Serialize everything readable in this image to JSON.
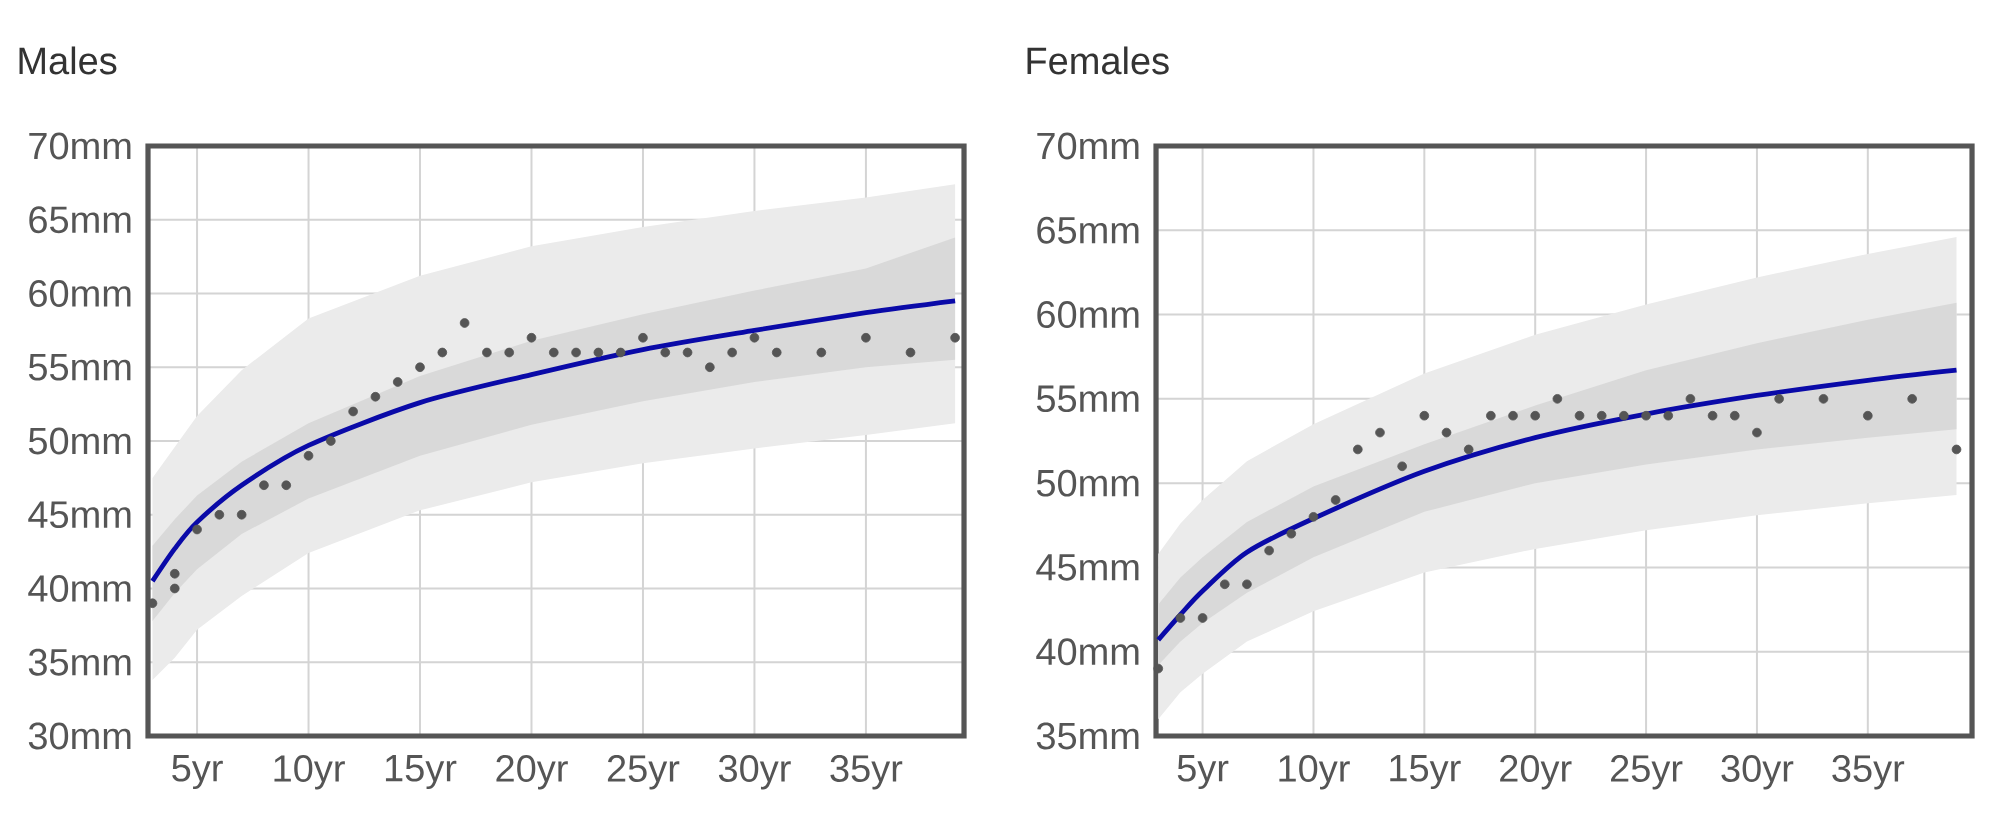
{
  "chart_data": [
    {
      "type": "line",
      "title": "Males",
      "xlim": [
        2.8,
        39.4
      ],
      "ylim": [
        30,
        70
      ],
      "xticks": [
        {
          "value": 5,
          "label": "5yr"
        },
        {
          "value": 10,
          "label": "10yr"
        },
        {
          "value": 15,
          "label": "15yr"
        },
        {
          "value": 20,
          "label": "20yr"
        },
        {
          "value": 25,
          "label": "25yr"
        },
        {
          "value": 30,
          "label": "30yr"
        },
        {
          "value": 35,
          "label": "35yr"
        }
      ],
      "yticks": [
        {
          "value": 30,
          "label": "30mm"
        },
        {
          "value": 35,
          "label": "35mm"
        },
        {
          "value": 40,
          "label": "40mm"
        },
        {
          "value": 45,
          "label": "45mm"
        },
        {
          "value": 50,
          "label": "50mm"
        },
        {
          "value": 55,
          "label": "55mm"
        },
        {
          "value": 60,
          "label": "60mm"
        },
        {
          "value": 65,
          "label": "65mm"
        },
        {
          "value": 70,
          "label": "70mm"
        }
      ],
      "grid": true,
      "series": [
        {
          "color": "#ebebeb",
          "x": [
            3,
            4,
            5,
            7,
            10,
            15,
            20,
            25,
            30,
            35,
            39
          ],
          "values": [
            null,
            null,
            null,
            null,
            null,
            null,
            null,
            null,
            null,
            null,
            null
          ],
          "lower": [
            33.8,
            35.3,
            37.2,
            39.5,
            42.4,
            45.3,
            47.2,
            48.5,
            49.5,
            50.4,
            51.2
          ],
          "upper": [
            47.5,
            49.6,
            51.7,
            54.8,
            58.3,
            61.2,
            63.2,
            64.5,
            65.6,
            66.5,
            67.4
          ]
        },
        {
          "color": "#0a0aa8",
          "x": [
            3,
            4,
            5,
            7,
            10,
            15,
            20,
            25,
            30,
            35,
            39
          ],
          "values": [
            40.5,
            42.7,
            44.5,
            47,
            49.7,
            52.6,
            54.5,
            56.2,
            57.5,
            58.7,
            59.5
          ],
          "lower": [
            37.8,
            39.7,
            41.3,
            43.7,
            46.1,
            49,
            51.1,
            52.7,
            54,
            55,
            55.5
          ],
          "upper": [
            42.9,
            44.7,
            46.3,
            48.6,
            51.2,
            54.4,
            56.8,
            58.6,
            60.2,
            61.7,
            63.8
          ]
        },
        {
          "type": "scatter",
          "color": "#555555",
          "x": [
            3,
            4,
            4,
            5,
            6,
            7,
            8,
            9,
            10,
            11,
            12,
            13,
            14,
            15,
            16,
            17,
            18,
            19,
            20,
            21,
            22,
            23,
            24,
            25,
            26,
            27,
            28,
            29,
            30,
            31,
            33,
            35,
            37,
            39
          ],
          "values": [
            39,
            41,
            40,
            44,
            45,
            45,
            47,
            47,
            49,
            50,
            52,
            53,
            54,
            55,
            56,
            58,
            56,
            56,
            57,
            56,
            56,
            56,
            56,
            57,
            56,
            56,
            55,
            56,
            57,
            56,
            56,
            57,
            56,
            57
          ]
        }
      ]
    },
    {
      "type": "line",
      "title": "Females",
      "xlim": [
        2.9,
        39.7
      ],
      "ylim": [
        35,
        70
      ],
      "xticks": [
        {
          "value": 5,
          "label": "5yr"
        },
        {
          "value": 10,
          "label": "10yr"
        },
        {
          "value": 15,
          "label": "15yr"
        },
        {
          "value": 20,
          "label": "20yr"
        },
        {
          "value": 25,
          "label": "25yr"
        },
        {
          "value": 30,
          "label": "30yr"
        },
        {
          "value": 35,
          "label": "35yr"
        }
      ],
      "yticks": [
        {
          "value": 35,
          "label": "35mm"
        },
        {
          "value": 40,
          "label": "40mm"
        },
        {
          "value": 45,
          "label": "45mm"
        },
        {
          "value": 50,
          "label": "50mm"
        },
        {
          "value": 55,
          "label": "55mm"
        },
        {
          "value": 60,
          "label": "60mm"
        },
        {
          "value": 65,
          "label": "65mm"
        },
        {
          "value": 70,
          "label": "70mm"
        }
      ],
      "grid": true,
      "series": [
        {
          "color": "#ebebeb",
          "x": [
            3,
            4,
            5,
            7,
            10,
            15,
            20,
            25,
            30,
            35,
            39
          ],
          "values": [
            null,
            null,
            null,
            null,
            null,
            null,
            null,
            null,
            null,
            null,
            null
          ],
          "lower": [
            36,
            37.6,
            38.7,
            40.6,
            42.4,
            44.7,
            46.1,
            47.2,
            48.1,
            48.8,
            49.3
          ],
          "upper": [
            45.8,
            47.6,
            49,
            51.3,
            53.5,
            56.5,
            58.8,
            60.6,
            62.2,
            63.6,
            64.6
          ]
        },
        {
          "color": "#0a0aa8",
          "x": [
            3,
            4,
            5,
            7,
            10,
            15,
            20,
            25,
            30,
            35,
            39
          ],
          "values": [
            40.7,
            42.2,
            43.6,
            45.9,
            47.9,
            50.7,
            52.7,
            54.1,
            55.2,
            56.1,
            56.7
          ],
          "lower": [
            39.2,
            40.6,
            41.7,
            43.5,
            45.6,
            48.3,
            50,
            51.1,
            52,
            52.7,
            53.2
          ],
          "upper": [
            42.8,
            44.4,
            45.6,
            47.7,
            49.8,
            52.3,
            54.6,
            56.7,
            58.3,
            59.7,
            60.7
          ]
        },
        {
          "type": "scatter",
          "color": "#555555",
          "x": [
            3,
            4,
            5,
            6,
            7,
            8,
            9,
            10,
            11,
            12,
            13,
            14,
            15,
            16,
            17,
            18,
            19,
            20,
            21,
            22,
            23,
            24,
            25,
            26,
            27,
            28,
            29,
            30,
            31,
            33,
            35,
            37,
            39
          ],
          "values": [
            39,
            42,
            42,
            44,
            44,
            46,
            47,
            48,
            49,
            52,
            53,
            51,
            54,
            53,
            52,
            54,
            54,
            54,
            55,
            54,
            54,
            54,
            54,
            54,
            55,
            54,
            54,
            53,
            55,
            55,
            54,
            55,
            52
          ]
        }
      ]
    }
  ]
}
